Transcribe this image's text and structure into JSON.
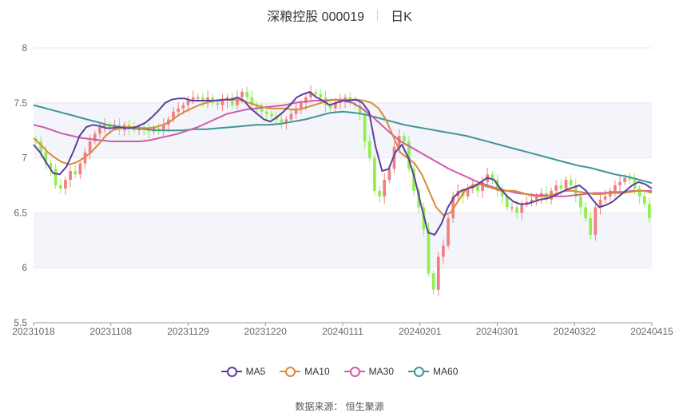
{
  "header": {
    "title": "深粮控股 000019",
    "period": "日K"
  },
  "footer": {
    "source": "数据来源：  恒生聚源"
  },
  "colors": {
    "up": "#f08080",
    "down": "#90ee50",
    "ma5": "#5b3f9f",
    "ma10": "#d98a3a",
    "ma30": "#d25aa8",
    "ma60": "#3e9595",
    "band": "#f3f5fa",
    "grid": "#e8e8e8"
  },
  "chart_data": {
    "type": "candlestick",
    "x_ticks": [
      "20231018",
      "20231108",
      "20231129",
      "20231220",
      "20240111",
      "20240201",
      "20240301",
      "20240322",
      "20240415"
    ],
    "ylim": [
      5.5,
      8
    ],
    "y_ticks": [
      5.5,
      6,
      6.5,
      7,
      7.5,
      8
    ],
    "legend": {
      "position": "bottom",
      "entries": [
        "MA5",
        "MA10",
        "MA30",
        "MA60"
      ]
    },
    "close": [
      7.15,
      7.05,
      6.95,
      6.9,
      6.75,
      6.72,
      6.8,
      6.88,
      6.85,
      6.95,
      7.05,
      7.15,
      7.22,
      7.28,
      7.3,
      7.28,
      7.3,
      7.25,
      7.3,
      7.27,
      7.25,
      7.28,
      7.26,
      7.24,
      7.27,
      7.25,
      7.3,
      7.35,
      7.42,
      7.45,
      7.48,
      7.52,
      7.55,
      7.55,
      7.52,
      7.55,
      7.5,
      7.48,
      7.52,
      7.55,
      7.48,
      7.55,
      7.6,
      7.55,
      7.48,
      7.45,
      7.42,
      7.4,
      7.38,
      7.35,
      7.32,
      7.35,
      7.4,
      7.45,
      7.5,
      7.55,
      7.6,
      7.58,
      7.55,
      7.48,
      7.45,
      7.5,
      7.52,
      7.55,
      7.5,
      7.48,
      7.4,
      7.15,
      7.0,
      6.7,
      6.65,
      6.8,
      6.9,
      7.1,
      7.2,
      7.15,
      6.9,
      6.7,
      6.55,
      6.35,
      5.95,
      5.8,
      6.1,
      6.2,
      6.45,
      6.65,
      6.7,
      6.65,
      6.72,
      6.75,
      6.7,
      6.78,
      6.85,
      6.8,
      6.7,
      6.65,
      6.55,
      6.55,
      6.5,
      6.58,
      6.6,
      6.62,
      6.65,
      6.68,
      6.62,
      6.7,
      6.75,
      6.72,
      6.8,
      6.75,
      6.65,
      6.55,
      6.45,
      6.3,
      6.55,
      6.62,
      6.65,
      6.7,
      6.75,
      6.78,
      6.82,
      6.8,
      6.72,
      6.65,
      6.58,
      6.45
    ],
    "ma5": [
      7.12,
      7.05,
      6.95,
      6.86,
      6.85,
      6.92,
      7.05,
      7.2,
      7.28,
      7.3,
      7.29,
      7.27,
      7.27,
      7.28,
      7.27,
      7.27,
      7.29,
      7.32,
      7.37,
      7.43,
      7.5,
      7.53,
      7.54,
      7.54,
      7.52,
      7.52,
      7.52,
      7.52,
      7.52,
      7.53,
      7.53,
      7.55,
      7.52,
      7.45,
      7.4,
      7.35,
      7.33,
      7.37,
      7.42,
      7.48,
      7.55,
      7.58,
      7.6,
      7.55,
      7.52,
      7.48,
      7.5,
      7.52,
      7.52,
      7.53,
      7.5,
      7.42,
      7.1,
      6.88,
      6.9,
      7.05,
      7.12,
      7.0,
      6.8,
      6.55,
      6.32,
      6.3,
      6.4,
      6.55,
      6.65,
      6.7,
      6.72,
      6.74,
      6.78,
      6.82,
      6.8,
      6.72,
      6.65,
      6.6,
      6.58,
      6.58,
      6.6,
      6.62,
      6.63,
      6.65,
      6.68,
      6.71,
      6.73,
      6.75,
      6.7,
      6.62,
      6.55,
      6.57,
      6.6,
      6.65,
      6.7,
      6.75,
      6.78,
      6.76,
      6.72
    ],
    "ma10": [
      7.18,
      7.12,
      7.05,
      7.0,
      6.96,
      6.94,
      6.96,
      7.0,
      7.05,
      7.12,
      7.2,
      7.25,
      7.27,
      7.28,
      7.28,
      7.27,
      7.27,
      7.28,
      7.3,
      7.33,
      7.38,
      7.42,
      7.45,
      7.48,
      7.5,
      7.52,
      7.53,
      7.53,
      7.53,
      7.52,
      7.5,
      7.48,
      7.46,
      7.45,
      7.45,
      7.45,
      7.44,
      7.44,
      7.46,
      7.48,
      7.5,
      7.52,
      7.53,
      7.53,
      7.53,
      7.53,
      7.52,
      7.5,
      7.45,
      7.35,
      7.2,
      7.05,
      7.0,
      6.95,
      6.85,
      6.7,
      6.55,
      6.48,
      6.5,
      6.6,
      6.7,
      6.75,
      6.76,
      6.74,
      6.72,
      6.7,
      6.7,
      6.7,
      6.68,
      6.66,
      6.65,
      6.65,
      6.66,
      6.68,
      6.7,
      6.7,
      6.69,
      6.68,
      6.67,
      6.67,
      6.68,
      6.68,
      6.68,
      6.69,
      6.7,
      6.7,
      6.68
    ],
    "ma30": [
      7.3,
      7.28,
      7.25,
      7.22,
      7.2,
      7.18,
      7.17,
      7.16,
      7.15,
      7.15,
      7.15,
      7.15,
      7.16,
      7.18,
      7.2,
      7.22,
      7.25,
      7.28,
      7.32,
      7.36,
      7.4,
      7.42,
      7.44,
      7.45,
      7.46,
      7.47,
      7.48,
      7.5,
      7.51,
      7.52,
      7.52,
      7.53,
      7.52,
      7.5,
      7.45,
      7.38,
      7.3,
      7.22,
      7.15,
      7.1,
      7.05,
      7.0,
      6.95,
      6.9,
      6.86,
      6.82,
      6.78,
      6.75,
      6.72,
      6.7,
      6.68,
      6.67,
      6.66,
      6.66,
      6.65,
      6.65,
      6.66,
      6.67,
      6.68,
      6.68,
      6.69,
      6.69,
      6.7,
      6.7,
      6.7
    ],
    "ma60": [
      7.48,
      7.45,
      7.42,
      7.39,
      7.36,
      7.33,
      7.3,
      7.28,
      7.27,
      7.26,
      7.25,
      7.25,
      7.25,
      7.26,
      7.26,
      7.27,
      7.28,
      7.29,
      7.3,
      7.3,
      7.31,
      7.33,
      7.35,
      7.38,
      7.41,
      7.42,
      7.41,
      7.39,
      7.36,
      7.33,
      7.3,
      7.28,
      7.26,
      7.24,
      7.22,
      7.2,
      7.17,
      7.14,
      7.11,
      7.08,
      7.05,
      7.02,
      6.99,
      6.96,
      6.93,
      6.91,
      6.88,
      6.85,
      6.83,
      6.8,
      6.77
    ]
  }
}
